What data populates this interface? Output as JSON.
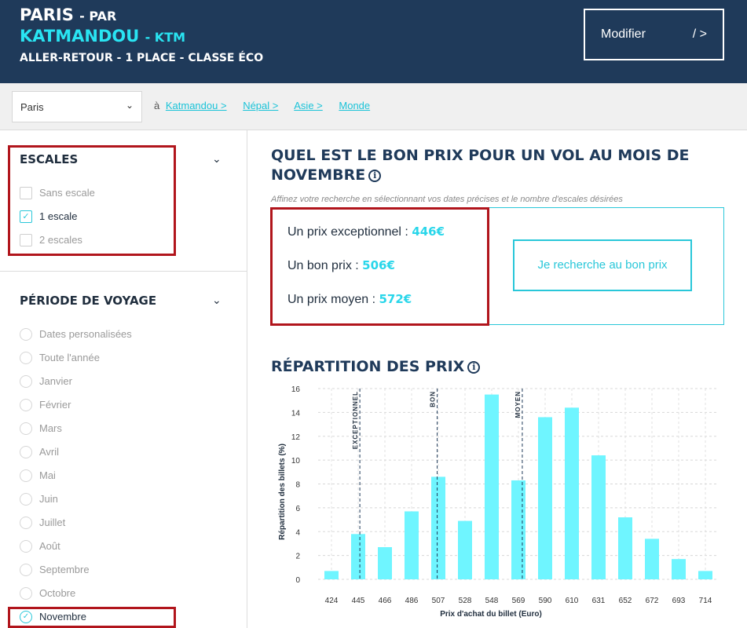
{
  "header": {
    "origin_city": "PARIS",
    "via_label": "- PAR",
    "destination_city": "KATMANDOU",
    "destination_code": "- KTM",
    "trip_details": "ALLER-RETOUR - 1 PLACE - CLASSE ÉCO",
    "modify_label": "Modifier",
    "modify_arrow": "/ >"
  },
  "filterbar": {
    "city_value": "Paris",
    "prefix": "à",
    "breadcrumbs": [
      "Katmandou >",
      "Népal >",
      "Asie >",
      "Monde"
    ]
  },
  "sidebar": {
    "stops": {
      "title": "ESCALES",
      "options": [
        {
          "label": "Sans escale",
          "checked": false
        },
        {
          "label": "1 escale",
          "checked": true
        },
        {
          "label": "2 escales",
          "checked": false
        }
      ]
    },
    "period": {
      "title": "PÉRIODE DE VOYAGE",
      "options": [
        {
          "label": "Dates personalisées",
          "checked": false
        },
        {
          "label": "Toute l'année",
          "checked": false
        },
        {
          "label": "Janvier",
          "checked": false
        },
        {
          "label": "Février",
          "checked": false
        },
        {
          "label": "Mars",
          "checked": false
        },
        {
          "label": "Avril",
          "checked": false
        },
        {
          "label": "Mai",
          "checked": false
        },
        {
          "label": "Juin",
          "checked": false
        },
        {
          "label": "Juillet",
          "checked": false
        },
        {
          "label": "Août",
          "checked": false
        },
        {
          "label": "Septembre",
          "checked": false
        },
        {
          "label": "Octobre",
          "checked": false
        },
        {
          "label": "Novembre",
          "checked": true
        }
      ]
    }
  },
  "main": {
    "title": "QUEL EST LE BON PRIX POUR UN VOL AU MOIS DE NOVEMBRE",
    "hint": "Affinez votre recherche en sélectionnant vos dates précises et le nombre d'escales désirées",
    "prices": [
      {
        "label": "Un prix exceptionnel :",
        "value": "446€"
      },
      {
        "label": "Un bon prix :",
        "value": "506€"
      },
      {
        "label": "Un prix moyen :",
        "value": "572€"
      }
    ],
    "search_button": "Je recherche au bon prix",
    "chart_title": "RÉPARTITION DES PRIX"
  },
  "colors": {
    "header_bg": "#1f3a5a",
    "accent": "#29c7d9",
    "bar": "#6ff5ff",
    "highlight_border": "#b1151c"
  },
  "chart_data": {
    "type": "bar",
    "categories": [
      "424",
      "445",
      "466",
      "486",
      "507",
      "528",
      "548",
      "569",
      "590",
      "610",
      "631",
      "652",
      "672",
      "693",
      "714"
    ],
    "values": [
      0.7,
      3.8,
      2.7,
      5.7,
      8.6,
      4.9,
      15.5,
      8.3,
      13.6,
      14.4,
      10.4,
      5.2,
      3.4,
      1.7,
      0.7
    ],
    "xlabel": "Prix d'achat du billet (Euro)",
    "ylabel": "Répartition des billets (%)",
    "ylim": [
      0,
      16
    ],
    "yticks": [
      0,
      2,
      4,
      6,
      8,
      10,
      12,
      14,
      16
    ],
    "grid": true,
    "markers": [
      {
        "label": "EXCEPTIONNEL",
        "x": 446
      },
      {
        "label": "BON",
        "x": 506
      },
      {
        "label": "MOYEN",
        "x": 572
      }
    ]
  }
}
